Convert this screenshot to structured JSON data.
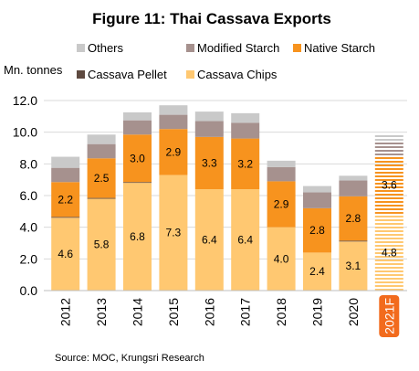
{
  "chart_data": {
    "type": "bar",
    "stacked": true,
    "title": "Figure 11: Thai Cassava Exports",
    "ylabel": "Mn. tonnes",
    "source": "Source: MOC, Krungsri Research",
    "categories": [
      "2012",
      "2013",
      "2014",
      "2015",
      "2016",
      "2017",
      "2018",
      "2019",
      "2020",
      "2021F"
    ],
    "forecast_category": "2021F",
    "ylim": [
      0,
      12
    ],
    "yticks": [
      "0.0",
      "2.0",
      "4.0",
      "6.0",
      "8.0",
      "10.0",
      "12.0"
    ],
    "legend_placement": "top",
    "series": [
      {
        "name": "Cassava Chips",
        "color": "#FFC871",
        "values": [
          4.6,
          5.8,
          6.8,
          7.3,
          6.4,
          6.4,
          4.0,
          2.4,
          3.1,
          4.8
        ],
        "labels": [
          "4.6",
          "5.8",
          "6.8",
          "7.3",
          "6.4",
          "6.4",
          "4.0",
          "2.4",
          "3.1",
          "4.8"
        ]
      },
      {
        "name": "Cassava Pellet",
        "color": "#5E4A40",
        "values": [
          0.05,
          0.05,
          0.05,
          0.0,
          0.0,
          0.0,
          0.0,
          0.0,
          0.05,
          0.05
        ],
        "labels": [
          "",
          "",
          "",
          "",
          "",
          "",
          "",
          "",
          "",
          ""
        ]
      },
      {
        "name": "Native Starch",
        "color": "#F7931E",
        "values": [
          2.2,
          2.5,
          3.0,
          2.9,
          3.3,
          3.2,
          2.9,
          2.8,
          2.8,
          3.6
        ],
        "labels": [
          "2.2",
          "2.5",
          "3.0",
          "2.9",
          "3.3",
          "3.2",
          "2.9",
          "2.8",
          "2.8",
          "3.6"
        ]
      },
      {
        "name": "Modified Starch",
        "color": "#A6918E",
        "values": [
          0.9,
          0.9,
          0.9,
          0.9,
          1.0,
          1.0,
          0.9,
          1.0,
          1.0,
          1.0
        ],
        "labels": [
          "",
          "",
          "",
          "",
          "",
          "",
          "",
          "",
          "",
          ""
        ]
      },
      {
        "name": "Others",
        "color": "#C9C9C9",
        "values": [
          0.7,
          0.6,
          0.5,
          0.6,
          0.6,
          0.6,
          0.4,
          0.4,
          0.3,
          0.4
        ],
        "labels": [
          "",
          "",
          "",
          "",
          "",
          "",
          "",
          "",
          "",
          ""
        ]
      }
    ],
    "legend_order": [
      "Others",
      "Modified Starch",
      "Native Starch",
      "Cassava Pellet",
      "Cassava Chips"
    ]
  }
}
